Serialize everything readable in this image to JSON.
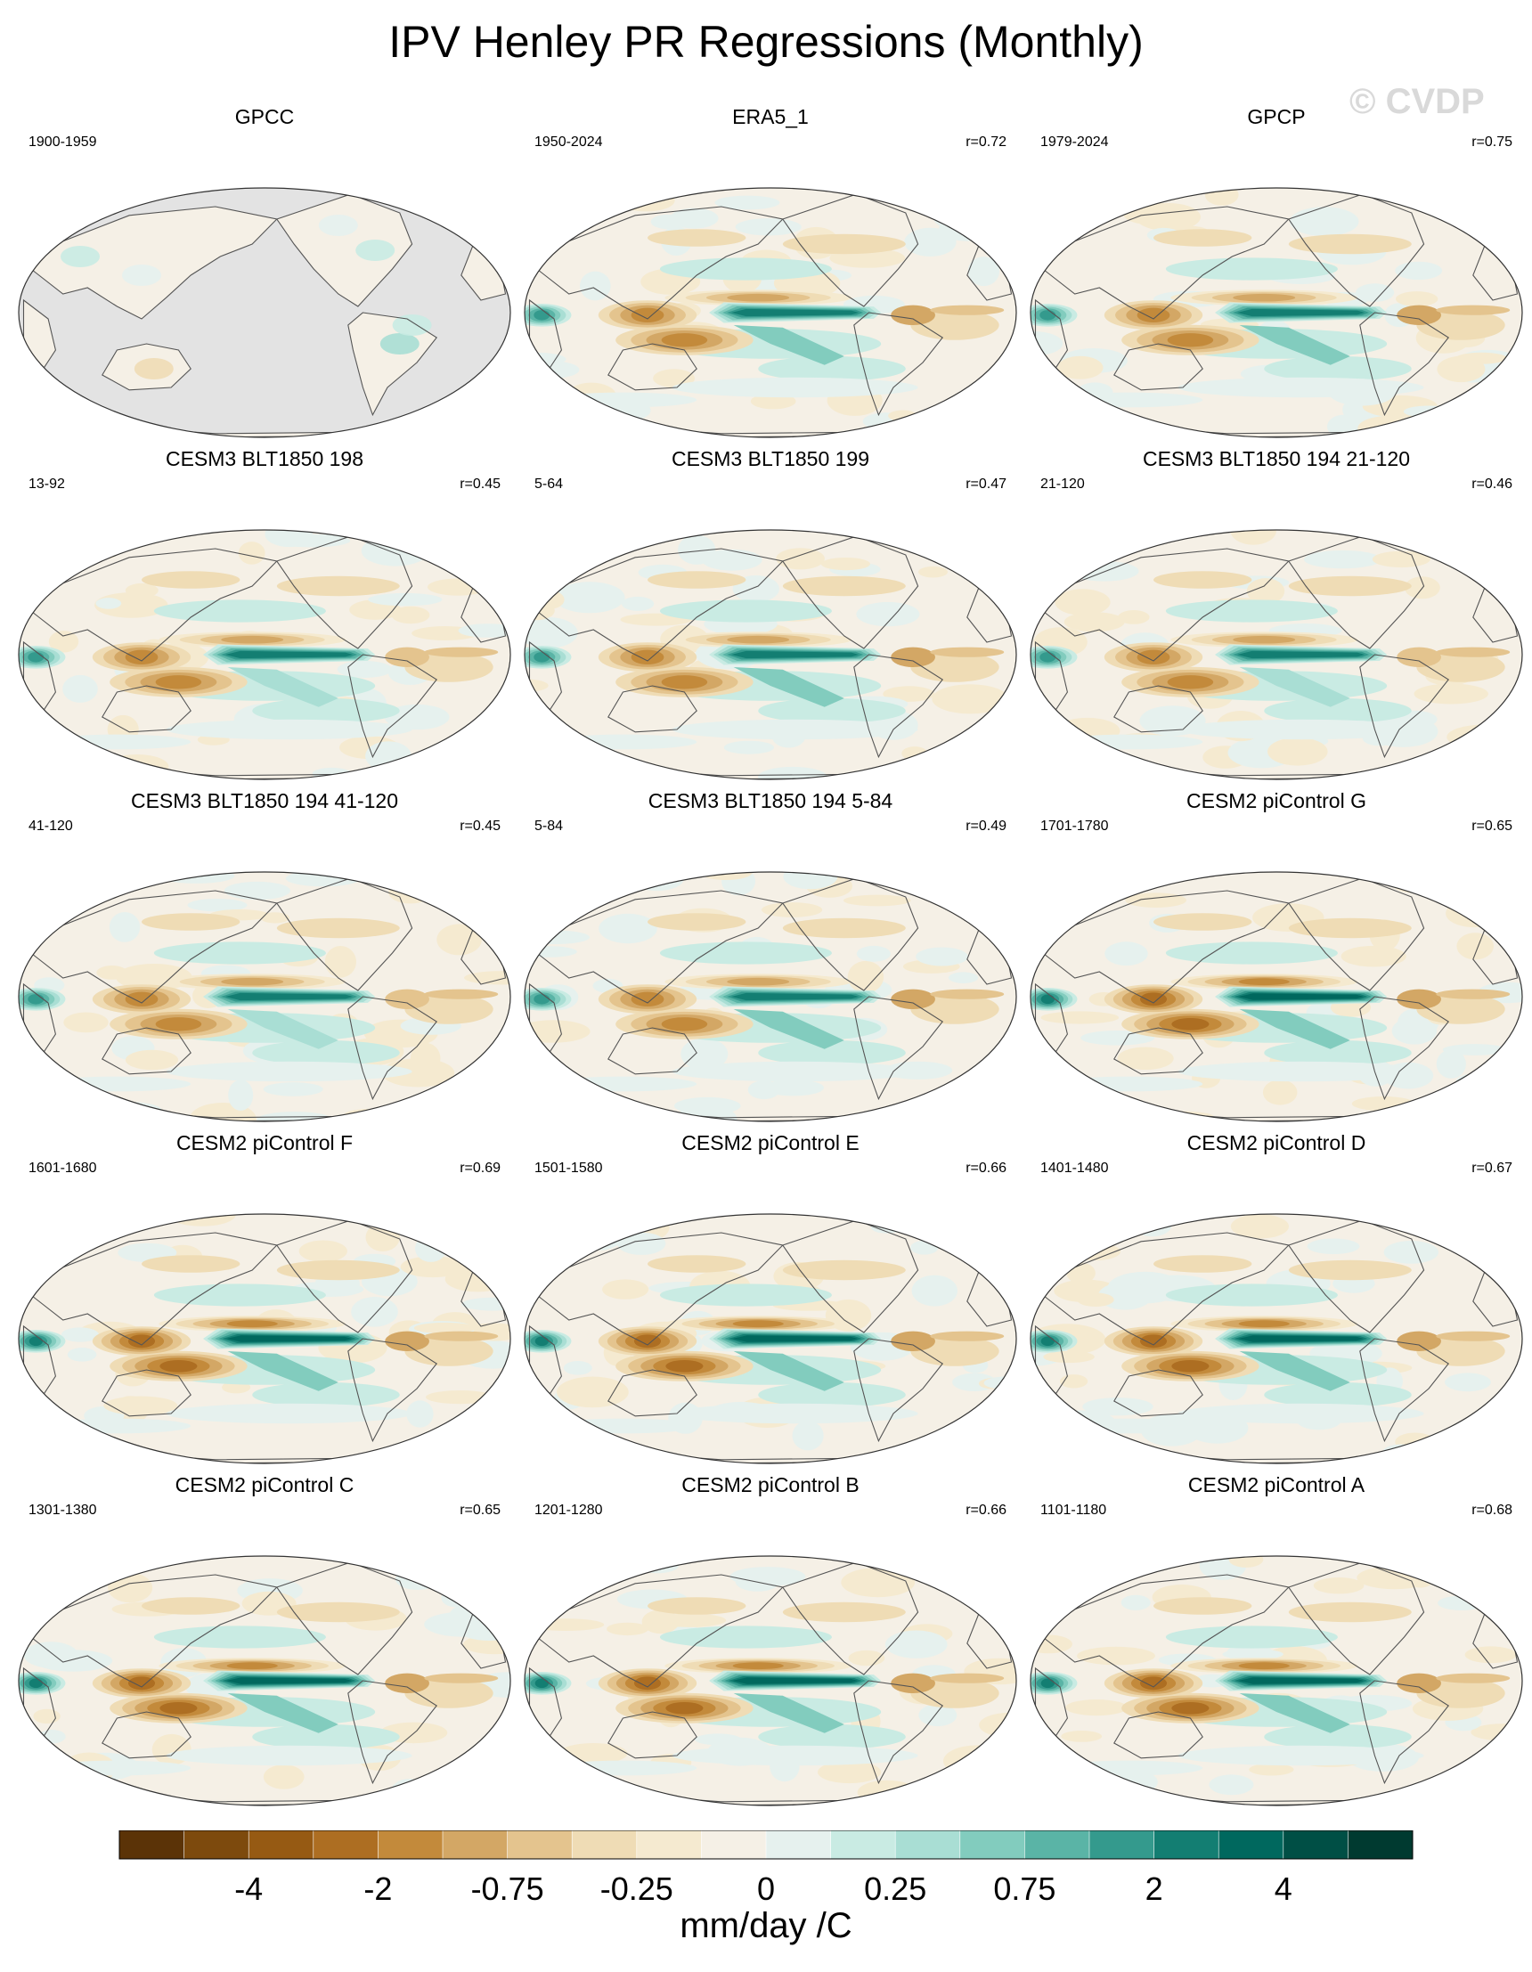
{
  "title": "IPV Henley PR Regressions (Monthly)",
  "watermark": "© CVDP",
  "panels": [
    {
      "title": "GPCC",
      "period": "1900-1959",
      "r": "",
      "scale": 0.2,
      "variant": 0,
      "ocean_missing": true
    },
    {
      "title": "ERA5_1",
      "period": "1950-2024",
      "r": "r=0.72",
      "scale": 0.85,
      "variant": 1
    },
    {
      "title": "GPCP",
      "period": "1979-2024",
      "r": "r=0.75",
      "scale": 0.85,
      "variant": 2
    },
    {
      "title": "CESM3 BLT1850 198",
      "period": "13-92",
      "r": "r=0.45",
      "scale": 0.8,
      "variant": 3
    },
    {
      "title": "CESM3 BLT1850 199",
      "period": "5-64",
      "r": "r=0.47",
      "scale": 0.85,
      "variant": 4
    },
    {
      "title": "CESM3 BLT1850 194 21-120",
      "period": "21-120",
      "r": "r=0.46",
      "scale": 0.8,
      "variant": 5
    },
    {
      "title": "CESM3 BLT1850 194 41-120",
      "period": "41-120",
      "r": "r=0.45",
      "scale": 0.8,
      "variant": 6
    },
    {
      "title": "CESM3 BLT1850 194 5-84",
      "period": "5-84",
      "r": "r=0.49",
      "scale": 0.85,
      "variant": 7
    },
    {
      "title": "CESM2 piControl G",
      "period": "1701-1780",
      "r": "r=0.65",
      "scale": 0.95,
      "variant": 8
    },
    {
      "title": "CESM2 piControl F",
      "period": "1601-1680",
      "r": "r=0.69",
      "scale": 0.95,
      "variant": 9
    },
    {
      "title": "CESM2 piControl E",
      "period": "1501-1580",
      "r": "r=0.66",
      "scale": 0.95,
      "variant": 10
    },
    {
      "title": "CESM2 piControl D",
      "period": "1401-1480",
      "r": "r=0.67",
      "scale": 0.95,
      "variant": 11
    },
    {
      "title": "CESM2 piControl C",
      "period": "1301-1380",
      "r": "r=0.65",
      "scale": 1.0,
      "variant": 12
    },
    {
      "title": "CESM2 piControl B",
      "period": "1201-1280",
      "r": "r=0.66",
      "scale": 1.0,
      "variant": 13
    },
    {
      "title": "CESM2 piControl A",
      "period": "1101-1180",
      "r": "r=0.68",
      "scale": 1.0,
      "variant": 14
    }
  ],
  "colorbar": {
    "colors": [
      "#5b3307",
      "#7d4a0d",
      "#965a13",
      "#ad6e22",
      "#c38a3b",
      "#d3a765",
      "#e4c48e",
      "#efdcb5",
      "#f5ead0",
      "#f5f0e6",
      "#e6f1ee",
      "#c9ebe3",
      "#a9ded4",
      "#82ccbe",
      "#5ab4a6",
      "#349a8d",
      "#137e72",
      "#00685e",
      "#004f45",
      "#003a30"
    ],
    "labels": [
      "-4",
      "-2",
      "-0.75",
      "-0.25",
      "0",
      "0.25",
      "0.75",
      "2",
      "4"
    ],
    "unit": "mm/day /C"
  }
}
